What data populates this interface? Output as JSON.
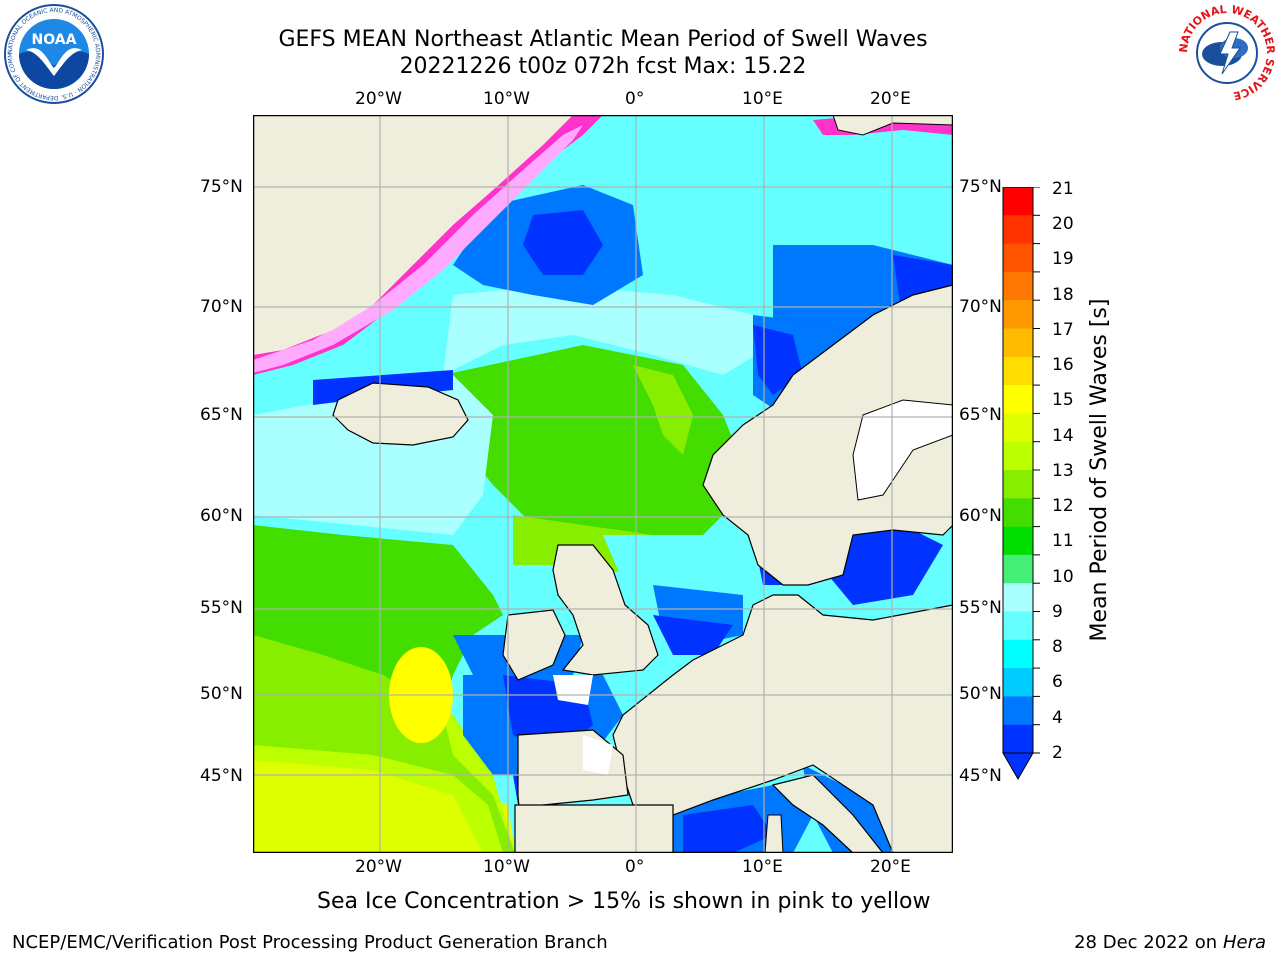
{
  "header": {
    "title_line1": "GEFS MEAN Northeast Atlantic Mean Period of Swell Waves",
    "title_line2": "20221226 t00z 072h fcst   Max: 15.22"
  },
  "map": {
    "lon_labels": [
      "20°W",
      "10°W",
      "0°",
      "10°E",
      "20°E"
    ],
    "lat_labels_left": [
      "75°N",
      "70°N",
      "65°N",
      "60°N",
      "55°N",
      "50°N",
      "45°N"
    ],
    "lat_labels_right": [
      "75°N",
      "70°N",
      "65°N",
      "60°N",
      "55°N",
      "50°N",
      "45°N"
    ],
    "land_color": "#efeedc",
    "ice_note": "Sea Ice Concentration > 15% is shown in pink to yellow"
  },
  "colorbar": {
    "label": "Mean Period of Swell Waves [s]",
    "ticks": [
      "21",
      "20",
      "19",
      "18",
      "17",
      "16",
      "15",
      "14",
      "13",
      "12",
      "11",
      "10",
      "9",
      "8",
      "7",
      "6",
      "5",
      "4",
      "3",
      "2"
    ],
    "tick_labels": [
      "21",
      "20",
      "19",
      "18",
      "17",
      "16",
      "15",
      "14",
      "13",
      "12",
      "11",
      "10",
      "9",
      "8",
      "6",
      "4",
      "2"
    ],
    "colors": [
      "#ff0000",
      "#ff3300",
      "#ff5500",
      "#ff7700",
      "#ff9900",
      "#ffbb00",
      "#ffdd00",
      "#ffff00",
      "#ddff00",
      "#bbff00",
      "#88ee00",
      "#44dd00",
      "#00dd00",
      "#44ee77",
      "#aaffff",
      "#66ffff",
      "#00ffff",
      "#00ccff",
      "#0077ff",
      "#0033ff"
    ]
  },
  "logos": {
    "noaa_text": "NOAA",
    "noaa_ring": "NATIONAL OCEANIC AND ATMOSPHERIC ADMINISTRATION · U.S. DEPARTMENT OF COMMERCE",
    "nws_ring": "NATIONAL WEATHER SERVICE"
  },
  "footer": {
    "left": "NCEP/EMC/Verification Post Processing Product Generation Branch",
    "right_date": "28 Dec 2022 on",
    "right_host": "Hera"
  }
}
